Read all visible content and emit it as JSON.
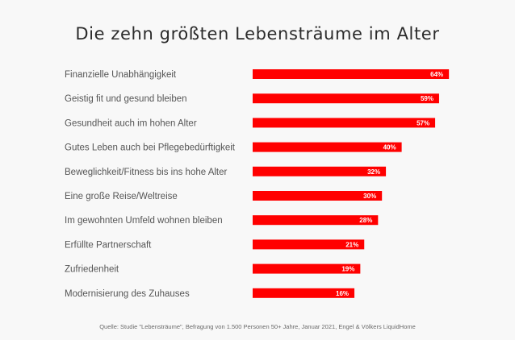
{
  "chart_data": {
    "type": "bar",
    "orientation": "horizontal",
    "title": "Die zehn größten Lebensträume im Alter",
    "xlabel": "",
    "ylabel": "",
    "unit": "%",
    "grid": false,
    "legend": "none",
    "bar_color": "#ff0000",
    "categories": [
      "Finanzielle Unabhängigkeit",
      "Geistig fit und gesund bleiben",
      "Gesundheit auch im hohen Alter",
      "Gutes Leben auch bei Pflegebedürftigkeit",
      "Beweglichkeit/Fitness bis ins hohe Alter",
      "Eine große Reise/Weltreise",
      "Im gewohnten Umfeld wohnen bleiben",
      "Erfüllte Partnerschaft",
      "Zufriedenheit",
      "Modernisierung des Zuhauses"
    ],
    "values": [
      64,
      59,
      57,
      40,
      32,
      30,
      28,
      21,
      19,
      16
    ],
    "value_labels": [
      "64%",
      "59%",
      "57%",
      "40%",
      "32%",
      "30%",
      "28%",
      "21%",
      "19%",
      "16%"
    ],
    "source": "Quelle: Studie \"Lebensträume\", Befragung von 1.500 Personen 50+ Jahre, Januar 2021, Engel & Völkers LiquidHome"
  }
}
